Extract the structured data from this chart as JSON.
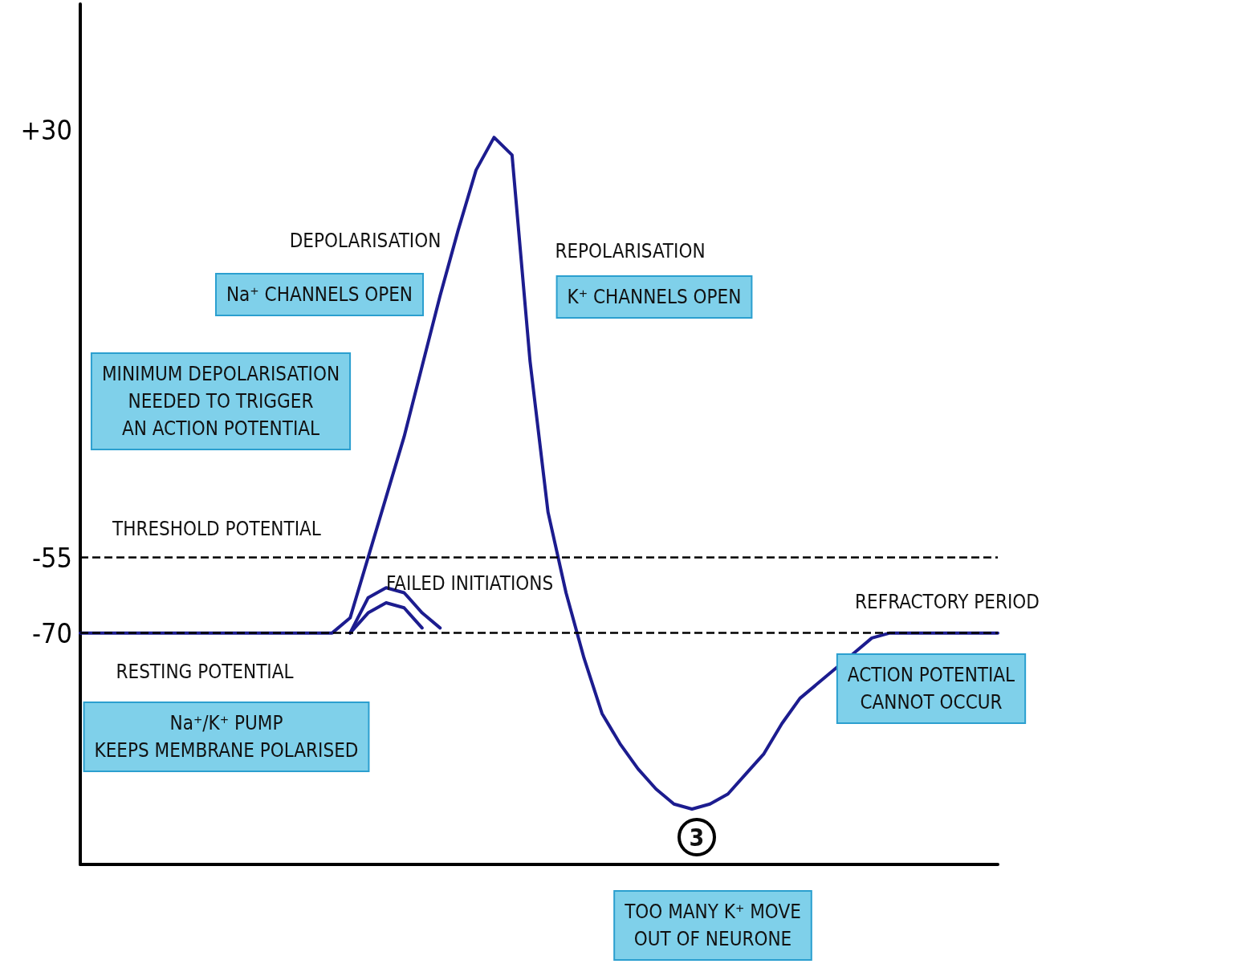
{
  "chart_data": {
    "type": "line",
    "categories": [
      null,
      null,
      null,
      null,
      null,
      null,
      null,
      null,
      null,
      null,
      null,
      null,
      null,
      null,
      null,
      null,
      null,
      null,
      null,
      null,
      null,
      null,
      null,
      null,
      null,
      null,
      null,
      null,
      null,
      null,
      null,
      null,
      null,
      null,
      null,
      null,
      null,
      null,
      null,
      null,
      null,
      null,
      null,
      null,
      null,
      null,
      null,
      null,
      null,
      null,
      null,
      null
    ],
    "ylim": [
      -116,
      55
    ],
    "yticks": [
      {
        "value": 30,
        "label": "+30"
      },
      -55,
      -70
    ],
    "grid": false,
    "marker": "none",
    "line_style": "solid",
    "series": [
      {
        "color": "#1c1c8f",
        "values": [
          -70,
          -70,
          -70,
          -70,
          -70,
          -70,
          -70,
          -70,
          -70,
          -70,
          -70,
          -70,
          -70,
          -70,
          -70,
          -67,
          -55,
          -43,
          -31,
          -17,
          -3,
          10,
          22,
          28.5,
          25,
          -16,
          -46,
          -62,
          -75,
          -86,
          -92,
          -97,
          -101,
          -104,
          -105,
          -104,
          -102,
          -98,
          -94,
          -88,
          -83,
          -80,
          -77,
          -74,
          -71,
          -70,
          -70,
          -70,
          -70,
          -70,
          -70,
          -70
        ]
      },
      {
        "color": "#1c1c8f",
        "values": [
          null,
          null,
          null,
          null,
          null,
          null,
          null,
          null,
          null,
          null,
          null,
          null,
          null,
          null,
          null,
          -70,
          -63,
          -61,
          -62,
          -66,
          -69,
          null,
          null,
          null,
          null,
          null,
          null,
          null,
          null,
          null,
          null,
          null,
          null,
          null,
          null,
          null,
          null,
          null,
          null,
          null,
          null,
          null,
          null,
          null,
          null,
          null,
          null,
          null,
          null,
          null,
          null,
          null
        ]
      },
      {
        "color": "#1c1c8f",
        "values": [
          null,
          null,
          null,
          null,
          null,
          null,
          null,
          null,
          null,
          null,
          null,
          null,
          null,
          null,
          null,
          -70,
          -66,
          -64,
          -65,
          -69,
          null,
          null,
          null,
          null,
          null,
          null,
          null,
          null,
          null,
          null,
          null,
          null,
          null,
          null,
          null,
          null,
          null,
          null,
          null,
          null,
          null,
          null,
          null,
          null,
          null,
          null,
          null,
          null,
          null,
          null,
          null,
          null
        ]
      }
    ],
    "ref_lines": [
      {
        "axis": "y",
        "value": -55,
        "label": "THRESHOLD POTENTIAL",
        "color": "#000000",
        "line_style": "dashed"
      },
      {
        "axis": "y",
        "value": -70,
        "color": "#000000",
        "line_style": "dashed"
      }
    ],
    "annotations": [
      "MINIMUM DEPOLARISATION\nNEEDED TO TRIGGER\nAN ACTION POTENTIAL",
      "DEPOLARISATION",
      "Na⁺ CHANNELS OPEN",
      "REPOLARISATION",
      "K⁺ CHANNELS OPEN",
      "FAILED INITIATIONS",
      "REFRACTORY PERIOD",
      "ACTION POTENTIAL\nCANNOT OCCUR",
      "RESTING POTENTIAL",
      "Na⁺/K⁺ PUMP\nKEEPS MEMBRANE POLARISED",
      "3",
      "TOO MANY K⁺ MOVE\nOUT OF NEURONE"
    ]
  }
}
